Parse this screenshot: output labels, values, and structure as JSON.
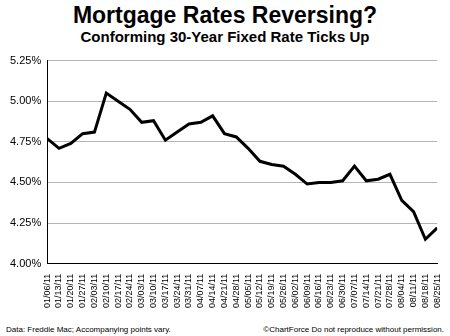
{
  "chart_data": {
    "type": "line",
    "title": "Mortgage Rates Reversing?",
    "subtitle": "Conforming 30-Year Fixed Rate Ticks Up",
    "annotations": [
      "Data: Freddie Mac; Accompanying points vary.",
      "©ChartForce Do not reproduce without permission."
    ],
    "categories": [
      "01/06/11",
      "01/13/11",
      "01/20/11",
      "01/27/11",
      "02/03/11",
      "02/10/11",
      "02/17/11",
      "02/24/11",
      "03/03/11",
      "03/10/11",
      "03/17/11",
      "03/24/11",
      "03/31/11",
      "04/07/11",
      "04/14/11",
      "04/21/11",
      "04/28/11",
      "05/05/11",
      "05/12/11",
      "05/19/11",
      "05/26/11",
      "06/02/11",
      "06/09/11",
      "06/16/11",
      "06/23/11",
      "06/30/11",
      "07/07/11",
      "07/14/11",
      "07/21/11",
      "07/28/11",
      "08/04/11",
      "08/11/11",
      "08/18/11",
      "08/25/11"
    ],
    "values": [
      4.77,
      4.71,
      4.74,
      4.8,
      4.81,
      5.05,
      5.0,
      4.95,
      4.87,
      4.88,
      4.76,
      4.81,
      4.86,
      4.87,
      4.91,
      4.8,
      4.78,
      4.71,
      4.63,
      4.61,
      4.6,
      4.55,
      4.49,
      4.5,
      4.5,
      4.51,
      4.6,
      4.51,
      4.52,
      4.55,
      4.39,
      4.32,
      4.15,
      4.22
    ],
    "color": "#000000",
    "marker": "none",
    "ylim": [
      4.0,
      5.25
    ],
    "yticks": [
      {
        "value": 4.0,
        "label": "4.00%"
      },
      {
        "value": 4.25,
        "label": "4.25%"
      },
      {
        "value": 4.5,
        "label": "4.50%"
      },
      {
        "value": 4.75,
        "label": "4.75%"
      },
      {
        "value": 5.0,
        "label": "5.00%"
      },
      {
        "value": 5.25,
        "label": "5.25%"
      }
    ],
    "grid": true
  }
}
